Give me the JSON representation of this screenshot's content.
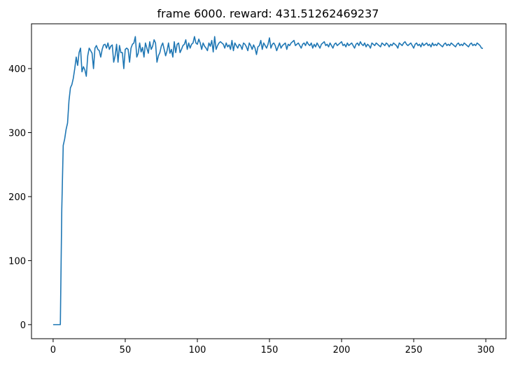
{
  "chart_data": {
    "type": "line",
    "title": "frame 6000. reward: 431.51262469237",
    "xlabel": "",
    "ylabel": "",
    "xlim": [
      -15,
      314
    ],
    "ylim": [
      -22,
      470
    ],
    "xticks": [
      0,
      50,
      100,
      150,
      200,
      250,
      300
    ],
    "yticks": [
      0,
      100,
      200,
      300,
      400
    ],
    "grid": false,
    "legend": "none",
    "colors": {
      "line": "#1f77b4",
      "axes": "#000000",
      "background": "#ffffff"
    },
    "series": [
      {
        "x": [
          0,
          1,
          2,
          3,
          4,
          5,
          6,
          7,
          8,
          9,
          10,
          11,
          12,
          13,
          14,
          15,
          16,
          17,
          18,
          19,
          20,
          21,
          22,
          23,
          24,
          25,
          26,
          27,
          28,
          29,
          30,
          31,
          32,
          33,
          34,
          35,
          36,
          37,
          38,
          39,
          40,
          41,
          42,
          43,
          44,
          45,
          46,
          47,
          48,
          49,
          50,
          51,
          52,
          53,
          54,
          55,
          56,
          57,
          58,
          59,
          60,
          61,
          62,
          63,
          64,
          65,
          66,
          67,
          68,
          69,
          70,
          71,
          72,
          73,
          74,
          75,
          76,
          77,
          78,
          79,
          80,
          81,
          82,
          83,
          84,
          85,
          86,
          87,
          88,
          89,
          90,
          91,
          92,
          93,
          94,
          95,
          96,
          97,
          98,
          99,
          100,
          101,
          102,
          103,
          104,
          105,
          106,
          107,
          108,
          109,
          110,
          111,
          112,
          113,
          114,
          115,
          116,
          117,
          118,
          119,
          120,
          121,
          122,
          123,
          124,
          125,
          126,
          127,
          128,
          129,
          130,
          131,
          132,
          133,
          134,
          135,
          136,
          137,
          138,
          139,
          140,
          141,
          142,
          143,
          144,
          145,
          146,
          147,
          148,
          149,
          150,
          151,
          152,
          153,
          154,
          155,
          156,
          157,
          158,
          159,
          160,
          161,
          162,
          163,
          164,
          165,
          166,
          167,
          168,
          169,
          170,
          171,
          172,
          173,
          174,
          175,
          176,
          177,
          178,
          179,
          180,
          181,
          182,
          183,
          184,
          185,
          186,
          187,
          188,
          189,
          190,
          191,
          192,
          193,
          194,
          195,
          196,
          197,
          198,
          199,
          200,
          201,
          202,
          203,
          204,
          205,
          206,
          207,
          208,
          209,
          210,
          211,
          212,
          213,
          214,
          215,
          216,
          217,
          218,
          219,
          220,
          221,
          222,
          223,
          224,
          225,
          226,
          227,
          228,
          229,
          230,
          231,
          232,
          233,
          234,
          235,
          236,
          237,
          238,
          239,
          240,
          241,
          242,
          243,
          244,
          245,
          246,
          247,
          248,
          249,
          250,
          251,
          252,
          253,
          254,
          255,
          256,
          257,
          258,
          259,
          260,
          261,
          262,
          263,
          264,
          265,
          266,
          267,
          268,
          269,
          270,
          271,
          272,
          273,
          274,
          275,
          276,
          277,
          278,
          279,
          280,
          281,
          282,
          283,
          284,
          285,
          286,
          287,
          288,
          289,
          290,
          291,
          292,
          293,
          294,
          295,
          296,
          297,
          298
        ],
        "y": [
          0,
          0,
          0,
          0,
          0,
          0,
          180,
          280,
          290,
          305,
          315,
          350,
          370,
          375,
          385,
          400,
          418,
          405,
          425,
          432,
          395,
          403,
          398,
          388,
          420,
          432,
          428,
          424,
          400,
          432,
          436,
          430,
          428,
          418,
          430,
          437,
          438,
          432,
          440,
          430,
          435,
          437,
          410,
          420,
          438,
          410,
          436,
          425,
          425,
          400,
          430,
          432,
          430,
          410,
          432,
          438,
          440,
          450,
          418,
          424,
          440,
          426,
          433,
          418,
          440,
          432,
          424,
          442,
          430,
          435,
          445,
          440,
          410,
          420,
          425,
          435,
          440,
          430,
          420,
          428,
          440,
          424,
          430,
          418,
          442,
          425,
          438,
          440,
          425,
          430,
          436,
          438,
          445,
          430,
          440,
          432,
          438,
          440,
          450,
          440,
          438,
          446,
          440,
          430,
          440,
          435,
          432,
          428,
          440,
          435,
          444,
          426,
          450,
          430,
          436,
          440,
          442,
          440,
          438,
          432,
          440,
          434,
          437,
          430,
          444,
          428,
          440,
          436,
          432,
          438,
          436,
          430,
          440,
          438,
          434,
          428,
          440,
          436,
          430,
          437,
          432,
          422,
          434,
          436,
          444,
          430,
          440,
          436,
          432,
          438,
          448,
          432,
          438,
          440,
          436,
          428,
          434,
          440,
          432,
          436,
          438,
          440,
          430,
          438,
          436,
          440,
          442,
          444,
          436,
          438,
          440,
          436,
          432,
          438,
          440,
          436,
          442,
          438,
          436,
          440,
          432,
          438,
          434,
          440,
          436,
          432,
          438,
          440,
          442,
          436,
          438,
          434,
          440,
          436,
          432,
          438,
          440,
          436,
          438,
          440,
          442,
          436,
          438,
          434,
          440,
          436,
          438,
          440,
          436,
          432,
          438,
          440,
          436,
          442,
          438,
          436,
          440,
          434,
          438,
          436,
          432,
          440,
          438,
          436,
          440,
          438,
          436,
          434,
          440,
          438,
          436,
          440,
          438,
          434,
          438,
          436,
          440,
          438,
          436,
          432,
          440,
          438,
          436,
          440,
          442,
          438,
          436,
          438,
          440,
          436,
          432,
          438,
          440,
          436,
          438,
          434,
          440,
          436,
          438,
          440,
          436,
          438,
          434,
          440,
          436,
          438,
          436,
          440,
          438,
          436,
          434,
          438,
          440,
          436,
          438,
          436,
          440,
          438,
          436,
          434,
          438,
          440,
          436,
          438,
          436,
          440,
          438,
          436,
          434,
          438,
          440,
          436,
          438,
          436,
          440,
          438,
          436,
          432,
          431.5
        ]
      }
    ]
  }
}
